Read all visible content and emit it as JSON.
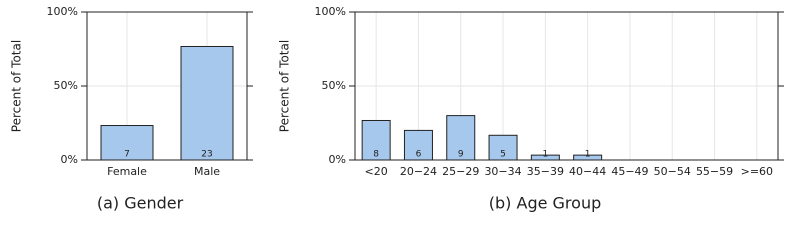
{
  "chart_data": [
    {
      "type": "bar",
      "caption": "(a) Gender",
      "ylabel": "Percent of Total",
      "categories": [
        "Female",
        "Male"
      ],
      "values": [
        23.3,
        76.7
      ],
      "counts": [
        7,
        23
      ],
      "color": "#a5c8ec",
      "ylim": [
        0,
        100
      ],
      "yticks": [
        {
          "value": 0,
          "label": "0%"
        },
        {
          "value": 50,
          "label": "50%"
        },
        {
          "value": 100,
          "label": "100%"
        }
      ],
      "grid": true
    },
    {
      "type": "bar",
      "caption": "(b) Age Group",
      "ylabel": "Percent of Total",
      "categories": [
        "<20",
        "20−24",
        "25−29",
        "30−34",
        "35−39",
        "40−44",
        "45−49",
        "50−54",
        "55−59",
        ">=60"
      ],
      "values": [
        26.7,
        20,
        30,
        16.7,
        3.3,
        3.3,
        0,
        0,
        0,
        0
      ],
      "counts": [
        8,
        6,
        9,
        5,
        1,
        1,
        null,
        null,
        null,
        null
      ],
      "color": "#a5c8ec",
      "ylim": [
        0,
        100
      ],
      "yticks": [
        {
          "value": 0,
          "label": "0%"
        },
        {
          "value": 50,
          "label": "50%"
        },
        {
          "value": 100,
          "label": "100%"
        }
      ],
      "grid": true
    }
  ]
}
